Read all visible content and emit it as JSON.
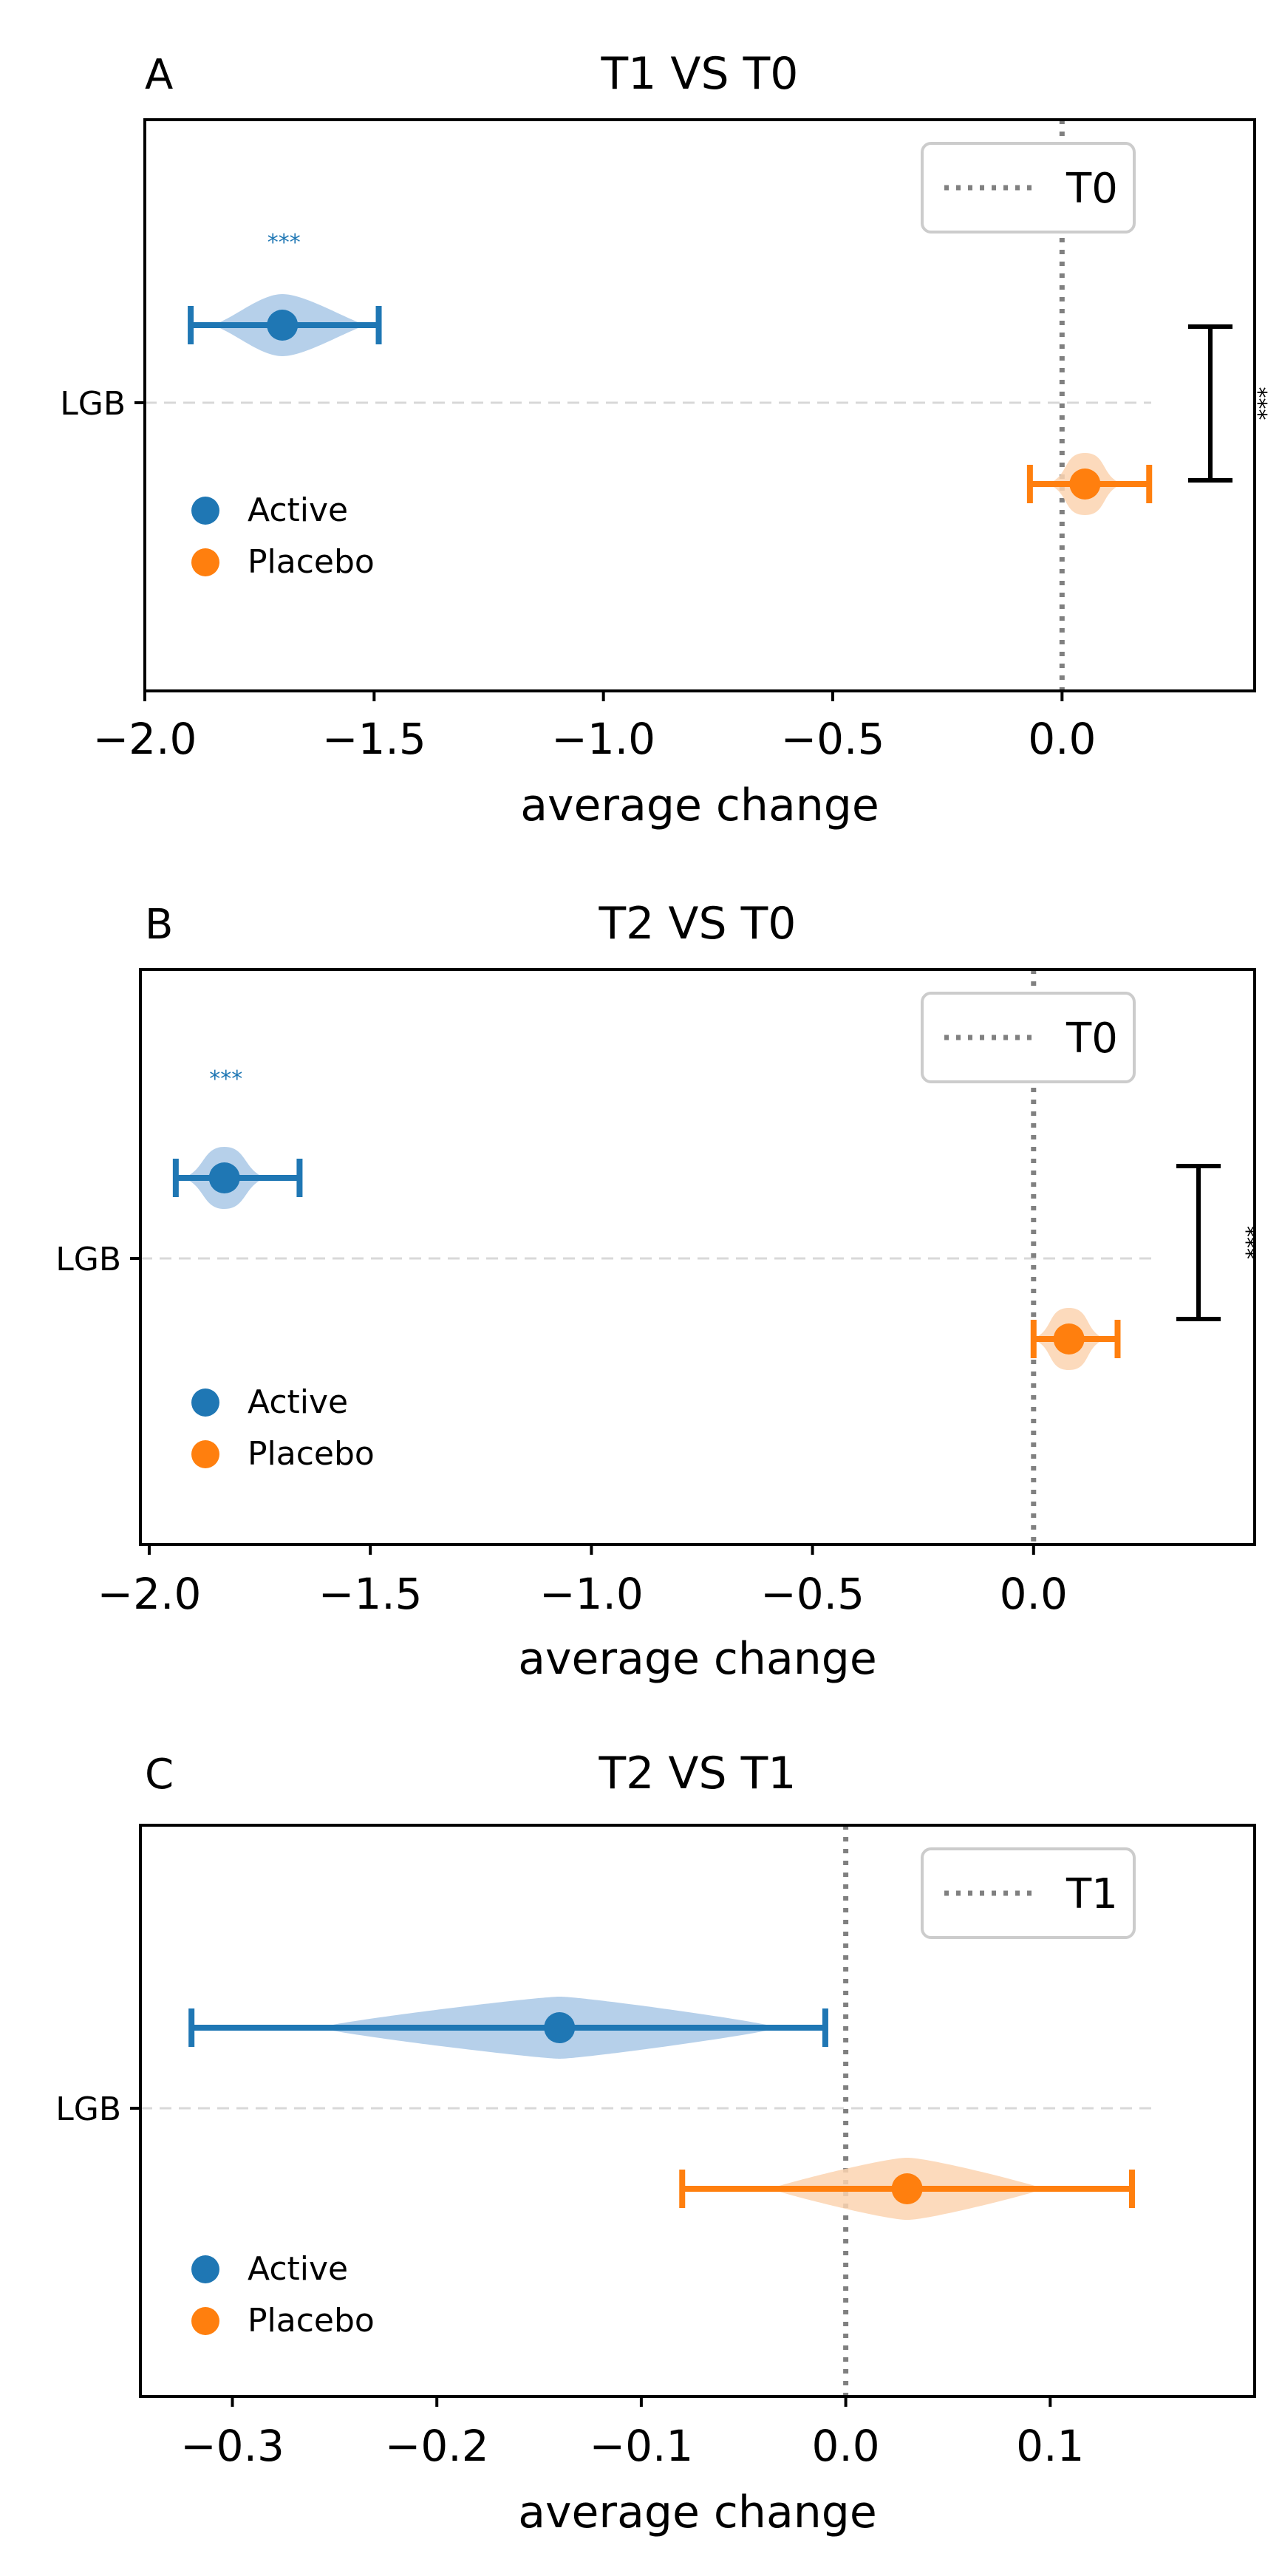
{
  "colors": {
    "active": "#1f77b4",
    "placebo": "#ff7f0e",
    "active_light": "#a9c8e6",
    "placebo_light": "#fcd3b0",
    "ref_line": "#808080",
    "grid": "#d8d8d8",
    "axis": "#000000"
  },
  "chart_data": [
    {
      "type": "violin-errorbar",
      "panel_label": "A",
      "title": "T1 VS T0",
      "xlabel": "average change",
      "ylabel": "",
      "y_tick_labels": [
        "LGB"
      ],
      "xlim": [
        -2.0,
        0.42
      ],
      "xticks": [
        -2.0,
        -1.5,
        -1.0,
        -0.5,
        0.0
      ],
      "xtick_labels": [
        "−2.0",
        "−1.5",
        "−1.0",
        "−0.5",
        "0.0"
      ],
      "reference_line": {
        "x": 0.0,
        "label": "T0"
      },
      "legend_location": "top-right",
      "series": [
        {
          "name": "Active",
          "key": "active",
          "mean": -1.7,
          "ci": [
            -1.9,
            -1.49
          ],
          "violin": [
            -1.82,
            -1.55
          ],
          "significance": "***"
        },
        {
          "name": "Placebo",
          "key": "placebo",
          "mean": 0.05,
          "ci": [
            -0.07,
            0.19
          ],
          "violin": [
            0.0,
            0.1
          ],
          "significance": ""
        }
      ],
      "comparison_bracket": {
        "label": "***"
      },
      "group_legend": [
        "Active",
        "Placebo"
      ]
    },
    {
      "type": "violin-errorbar",
      "panel_label": "B",
      "title": "T2 VS T0",
      "xlabel": "average change",
      "ylabel": "",
      "y_tick_labels": [
        "LGB"
      ],
      "xlim": [
        -2.02,
        0.5
      ],
      "xticks": [
        -2.0,
        -1.5,
        -1.0,
        -0.5,
        0.0
      ],
      "xtick_labels": [
        "−2.0",
        "−1.5",
        "−1.0",
        "−0.5",
        "0.0"
      ],
      "reference_line": {
        "x": 0.0,
        "label": "T0"
      },
      "legend_location": "top-right",
      "series": [
        {
          "name": "Active",
          "key": "active",
          "mean": -1.83,
          "ci": [
            -1.94,
            -1.66
          ],
          "violin": [
            -1.89,
            -1.77
          ],
          "significance": "***"
        },
        {
          "name": "Placebo",
          "key": "placebo",
          "mean": 0.08,
          "ci": [
            0.0,
            0.19
          ],
          "violin": [
            0.03,
            0.13
          ],
          "significance": ""
        }
      ],
      "comparison_bracket": {
        "label": "***"
      },
      "group_legend": [
        "Active",
        "Placebo"
      ]
    },
    {
      "type": "violin-errorbar",
      "panel_label": "C",
      "title": "T2 VS T1",
      "xlabel": "average change",
      "ylabel": "",
      "y_tick_labels": [
        "LGB"
      ],
      "xlim": [
        -0.345,
        0.2
      ],
      "xticks": [
        -0.3,
        -0.2,
        -0.1,
        0.0,
        0.1
      ],
      "xtick_labels": [
        "−0.3",
        "−0.2",
        "−0.1",
        "0.0",
        "0.1"
      ],
      "reference_line": {
        "x": 0.0,
        "label": "T1"
      },
      "legend_location": "top-right",
      "series": [
        {
          "name": "Active",
          "key": "active",
          "mean": -0.14,
          "ci": [
            -0.32,
            -0.01
          ],
          "violin": [
            -0.25,
            -0.04
          ],
          "significance": ""
        },
        {
          "name": "Placebo",
          "key": "placebo",
          "mean": 0.03,
          "ci": [
            -0.08,
            0.14
          ],
          "violin": [
            -0.03,
            0.09
          ],
          "significance": ""
        }
      ],
      "comparison_bracket": null,
      "group_legend": [
        "Active",
        "Placebo"
      ]
    }
  ]
}
